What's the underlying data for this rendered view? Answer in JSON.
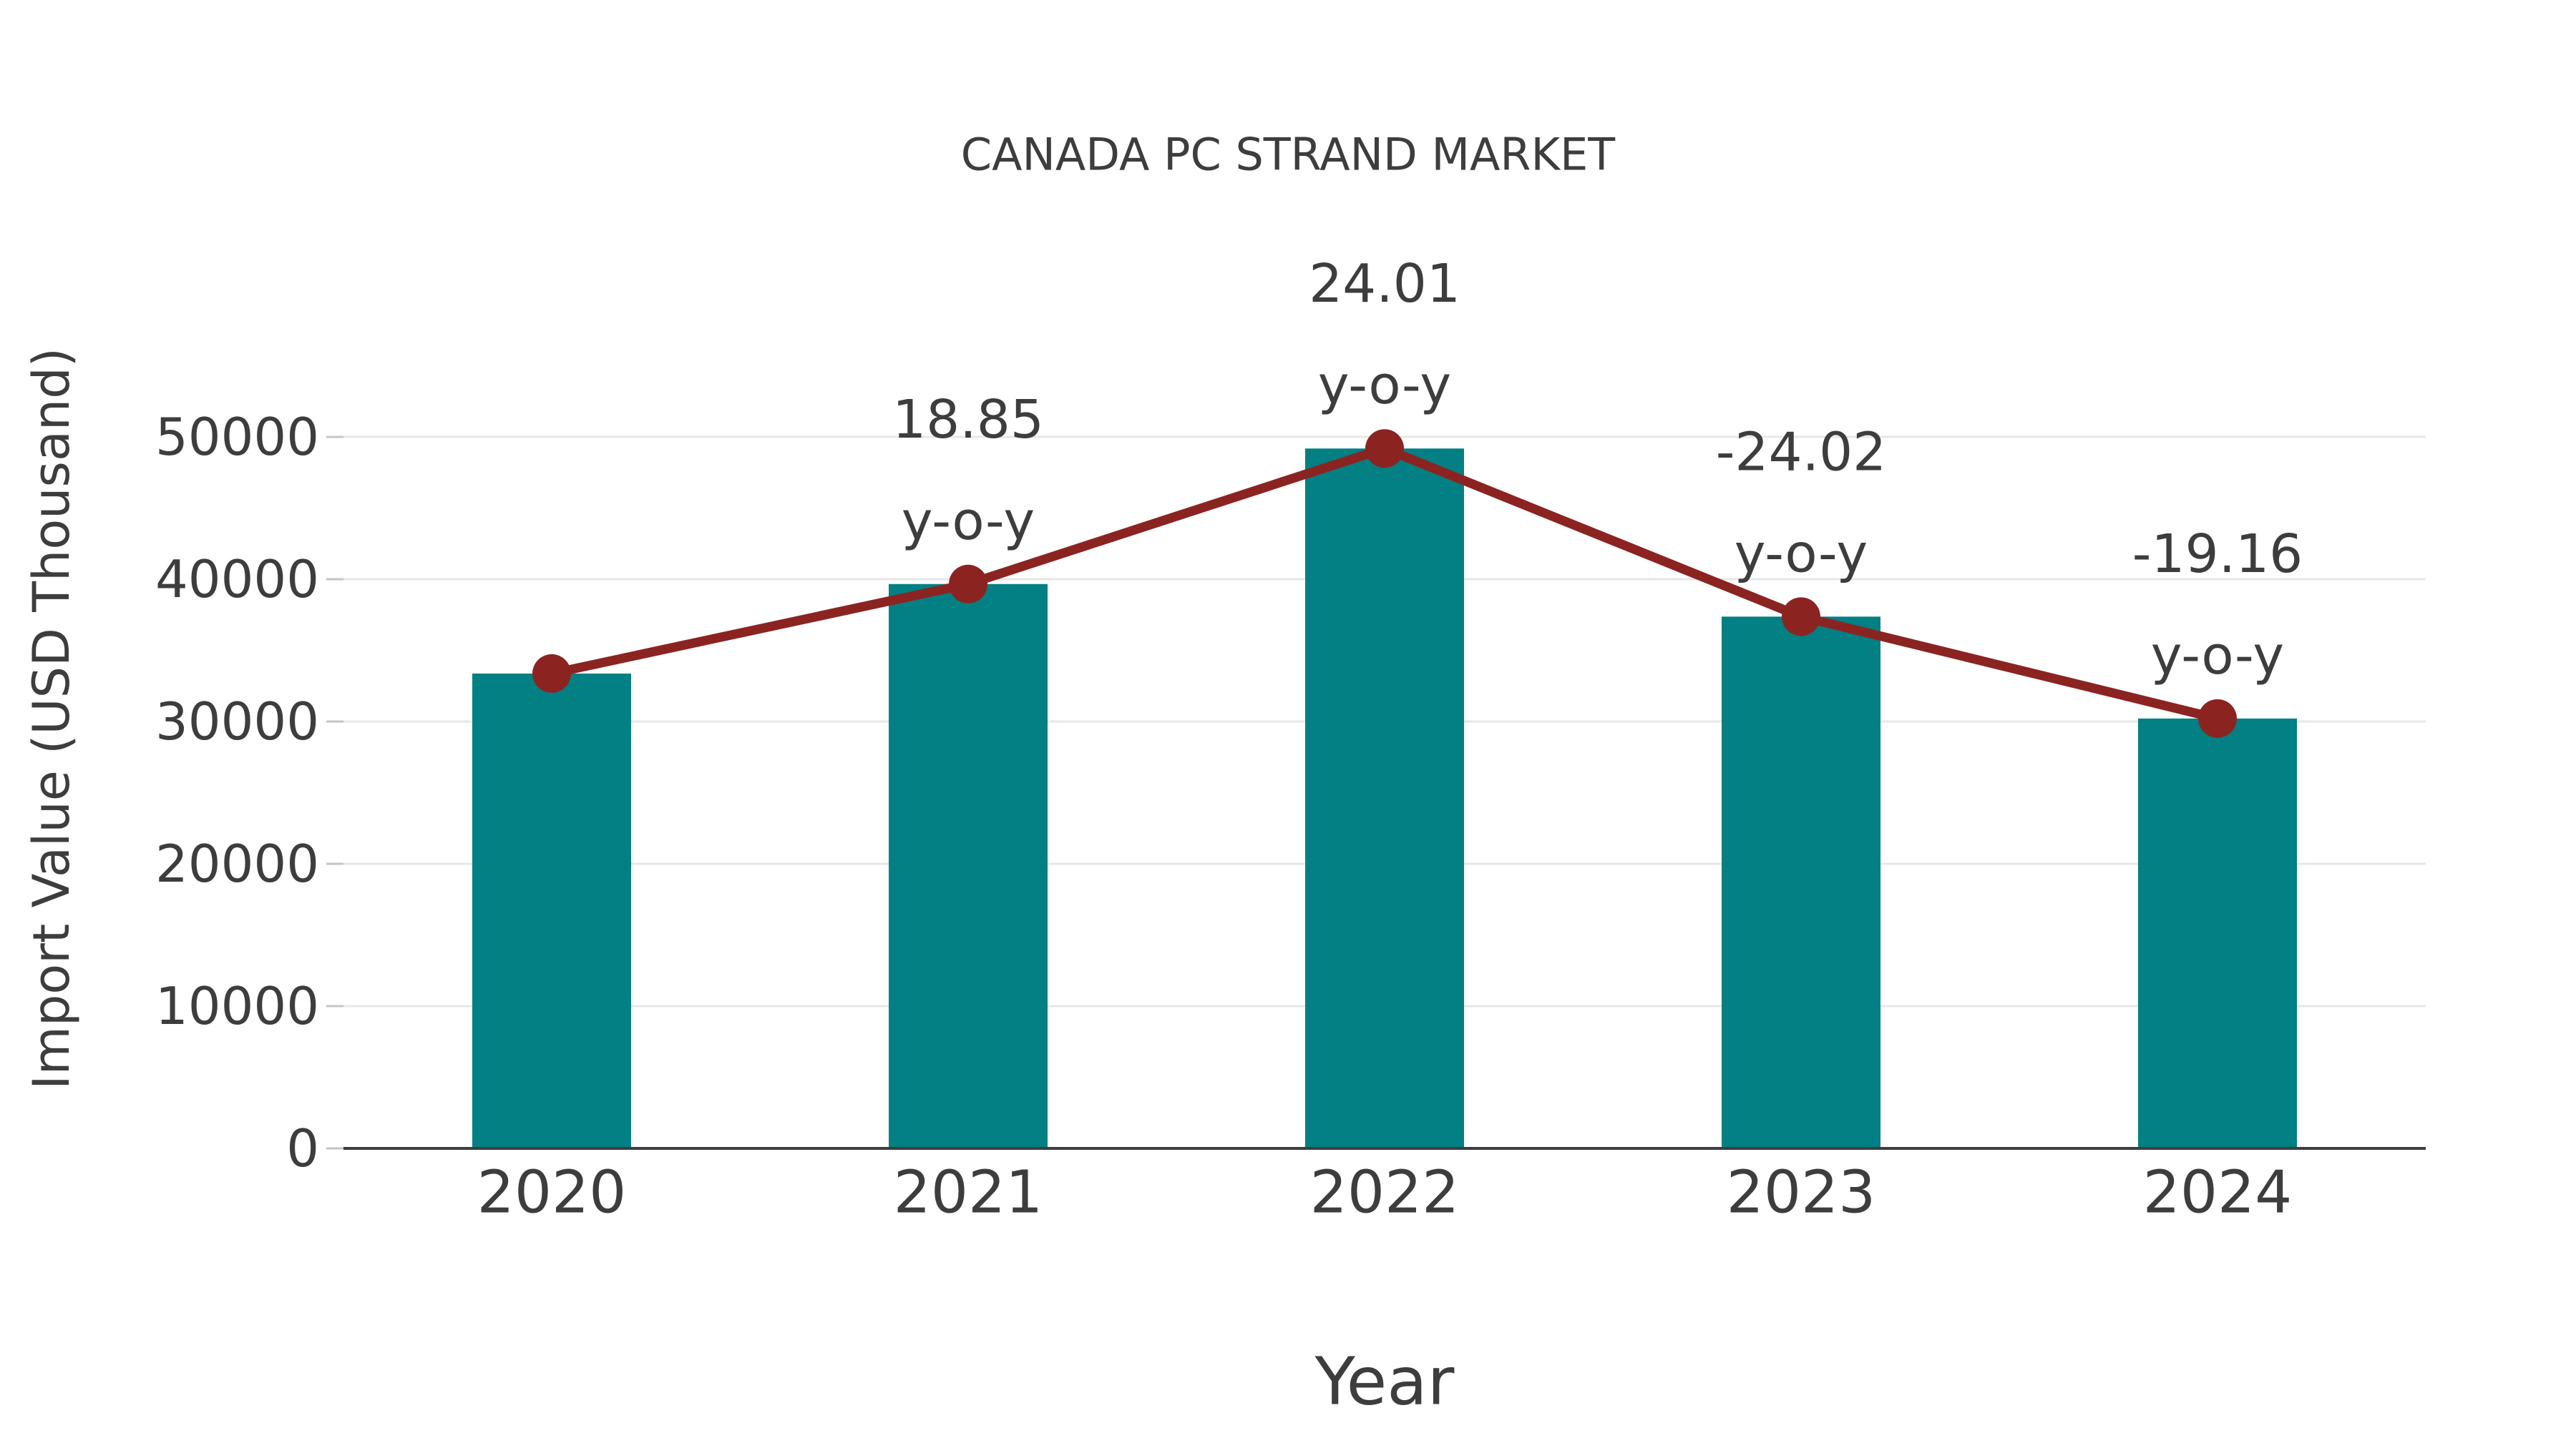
{
  "figure": {
    "background": "#ffffff"
  },
  "chart_data": {
    "type": "bar",
    "title": "CANADA PC STRAND MARKET",
    "xlabel": "Year",
    "ylabel": "Import Value (USD Thousand)",
    "categories": [
      "2020",
      "2021",
      "2022",
      "2023",
      "2024"
    ],
    "series": [
      {
        "name": "Import Value (USD Thousand)",
        "type": "bar",
        "color": "#028083",
        "values": [
          33370,
          39660,
          49185,
          37370,
          30210
        ]
      },
      {
        "name": "y-o-y trend line",
        "type": "line",
        "color": "#8b2421",
        "marker": "circle",
        "values": [
          33370,
          39660,
          49185,
          37370,
          30210
        ]
      }
    ],
    "annotations": [
      {
        "category": "2021",
        "value_label": "18.85",
        "suffix_label": "y-o-y"
      },
      {
        "category": "2022",
        "value_label": "24.01",
        "suffix_label": "y-o-y"
      },
      {
        "category": "2023",
        "value_label": "-24.02",
        "suffix_label": "y-o-y"
      },
      {
        "category": "2024",
        "value_label": "-19.16",
        "suffix_label": "y-o-y"
      }
    ],
    "yticks": [
      0,
      10000,
      20000,
      30000,
      40000,
      50000
    ],
    "ytick_labels": [
      "0",
      "10000",
      "20000",
      "30000",
      "40000",
      "50000"
    ],
    "ylim": [
      0,
      55000
    ],
    "grid": true,
    "legend": false,
    "colors": {
      "bar": "#028083",
      "line": "#8b2421",
      "grid": "#e7e7e7",
      "tick": "#c4c4c4",
      "axis": "#3d3d3d",
      "text": "#3d3d3d"
    }
  }
}
